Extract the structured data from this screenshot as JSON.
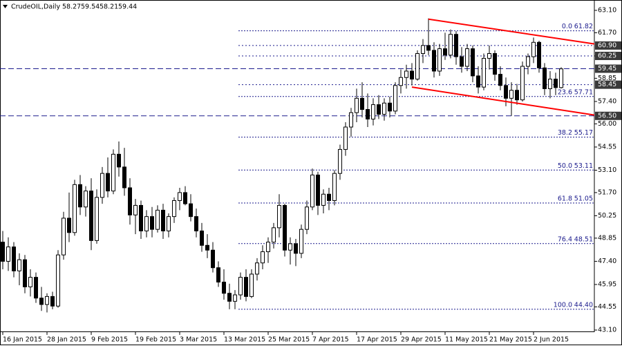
{
  "chart_data": {
    "type": "candlestick",
    "title": "CrudeOIL,Daily",
    "categories": [
      "16 Jan 2015",
      null,
      null,
      null,
      null,
      null,
      null,
      null,
      "28 Jan 2015",
      null,
      null,
      null,
      null,
      null,
      null,
      null,
      "9 Feb 2015",
      null,
      null,
      null,
      null,
      null,
      null,
      null,
      "19 Feb 2015",
      null,
      null,
      null,
      null,
      null,
      null,
      null,
      "3 Mar 2015",
      null,
      null,
      null,
      null,
      null,
      null,
      null,
      "13 Mar 2015",
      null,
      null,
      null,
      null,
      null,
      null,
      null,
      "25 Mar 2015",
      null,
      null,
      null,
      null,
      null,
      null,
      null,
      "7 Apr 2015",
      null,
      null,
      null,
      null,
      null,
      null,
      null,
      "17 Apr 2015",
      null,
      null,
      null,
      null,
      null,
      null,
      null,
      "29 Apr 2015",
      null,
      null,
      null,
      null,
      null,
      null,
      null,
      "11 May 2015",
      null,
      null,
      null,
      null,
      null,
      null,
      null,
      "21 May 2015",
      null,
      null,
      null,
      null,
      null,
      null,
      null,
      "2 Jun 2015",
      null,
      null,
      null,
      null,
      null
    ],
    "open": [
      48.6,
      47.4,
      48.3,
      46.8,
      47.5,
      45.8,
      46.4,
      45.1,
      44.7,
      45.2,
      44.6,
      47.8,
      50.1,
      49.2,
      52.2,
      50.8,
      51.8,
      48.7,
      51.4,
      52.9,
      51.8,
      54.1,
      53.3,
      52.0,
      50.3,
      50.9,
      49.3,
      50.2,
      49.4,
      50.6,
      49.3,
      50.2,
      51.2,
      51.7,
      51.0,
      50.2,
      49.3,
      48.4,
      48.1,
      47.0,
      46.1,
      45.4,
      44.9,
      45.3,
      46.4,
      45.2,
      46.6,
      47.3,
      48.0,
      48.6,
      49.5,
      50.9,
      48.1,
      48.5,
      47.9,
      49.4,
      50.8,
      52.8,
      50.9,
      51.6,
      51.2,
      52.9,
      54.4,
      55.8,
      56.7,
      57.6,
      56.9,
      56.3,
      57.2,
      56.6,
      57.3,
      56.8,
      58.4,
      58.9,
      59.3,
      58.8,
      60.4,
      60.9,
      60.6,
      59.3,
      60.7,
      60.3,
      61.6,
      60.2,
      59.6,
      60.7,
      59.0,
      58.3,
      60.1,
      60.4,
      59.1,
      58.4,
      57.6,
      58.1,
      57.5,
      59.6,
      60.2,
      61.1,
      59.5,
      58.2,
      58.8,
      58.27
    ],
    "high": [
      49.3,
      48.9,
      48.6,
      47.9,
      47.8,
      46.9,
      46.7,
      45.8,
      45.4,
      45.5,
      48.1,
      50.5,
      51.7,
      52.5,
      52.8,
      52.1,
      52.6,
      51.9,
      53.3,
      53.9,
      54.4,
      54.9,
      54.5,
      52.6,
      51.3,
      51.2,
      50.6,
      50.8,
      50.9,
      51.0,
      50.4,
      51.4,
      52.0,
      52.1,
      51.6,
      50.7,
      49.8,
      49.1,
      48.6,
      47.4,
      46.9,
      46.0,
      45.6,
      46.7,
      46.9,
      46.9,
      47.6,
      48.4,
      48.9,
      49.8,
      51.6,
      51.0,
      48.9,
      48.8,
      49.7,
      51.2,
      53.2,
      53.0,
      51.9,
      52.0,
      53.1,
      54.7,
      56.1,
      57.0,
      58.2,
      58.6,
      57.9,
      57.6,
      57.8,
      57.6,
      57.7,
      58.6,
      59.4,
      59.7,
      59.8,
      60.6,
      61.3,
      62.6,
      61.1,
      61.0,
      61.7,
      61.9,
      61.8,
      60.8,
      61.0,
      60.9,
      59.6,
      60.4,
      60.9,
      60.6,
      59.6,
      58.9,
      58.6,
      58.5,
      59.9,
      60.4,
      61.4,
      61.2,
      59.8,
      59.3,
      59.2,
      59.54
    ],
    "low": [
      46.9,
      46.8,
      46.4,
      45.9,
      45.4,
      45.2,
      44.8,
      44.3,
      44.2,
      44.4,
      44.5,
      47.5,
      48.6,
      49.0,
      50.3,
      50.2,
      48.1,
      48.5,
      51.0,
      51.4,
      51.6,
      52.7,
      51.5,
      49.7,
      49.1,
      48.8,
      48.9,
      48.9,
      49.2,
      48.8,
      48.9,
      49.8,
      50.6,
      50.9,
      49.9,
      48.9,
      48.0,
      47.6,
      46.7,
      45.8,
      45.0,
      44.4,
      44.4,
      45.0,
      44.9,
      45.1,
      46.2,
      46.9,
      47.3,
      48.2,
      48.9,
      47.7,
      47.2,
      47.1,
      47.6,
      49.1,
      50.6,
      50.3,
      50.4,
      50.6,
      50.9,
      52.5,
      54.0,
      55.2,
      56.1,
      56.4,
      55.8,
      55.9,
      56.3,
      56.2,
      56.4,
      56.6,
      57.9,
      58.2,
      58.4,
      58.7,
      59.8,
      60.3,
      58.9,
      59.0,
      60.0,
      60.1,
      59.7,
      59.2,
      59.3,
      58.6,
      57.9,
      58.1,
      59.4,
      58.7,
      58.1,
      57.1,
      56.5,
      57.2,
      57.4,
      59.1,
      59.8,
      59.2,
      57.8,
      57.6,
      57.8,
      58.21
    ],
    "close": [
      47.4,
      48.3,
      46.8,
      47.5,
      45.8,
      46.4,
      45.1,
      44.7,
      45.2,
      44.6,
      47.8,
      50.1,
      49.2,
      52.2,
      50.8,
      51.8,
      48.7,
      51.4,
      52.9,
      51.8,
      54.1,
      53.3,
      52.0,
      50.3,
      50.9,
      49.3,
      50.2,
      49.4,
      50.6,
      49.3,
      50.2,
      51.2,
      51.7,
      51.0,
      50.2,
      49.3,
      48.4,
      48.1,
      47.0,
      46.1,
      45.4,
      44.9,
      45.3,
      46.4,
      45.2,
      46.6,
      47.3,
      48.0,
      48.6,
      49.5,
      50.9,
      48.1,
      48.5,
      47.9,
      49.4,
      50.8,
      52.8,
      50.9,
      51.6,
      51.2,
      52.9,
      54.4,
      55.8,
      56.7,
      57.6,
      56.9,
      56.3,
      57.2,
      56.6,
      57.3,
      56.8,
      58.4,
      58.9,
      59.3,
      58.8,
      60.4,
      60.9,
      60.6,
      59.3,
      60.7,
      60.3,
      61.6,
      60.2,
      59.6,
      60.7,
      59.0,
      58.3,
      60.1,
      60.4,
      59.1,
      58.4,
      57.6,
      58.1,
      57.5,
      59.6,
      60.2,
      61.1,
      59.5,
      58.2,
      58.8,
      58.27,
      59.44
    ],
    "ylim": [
      43.1,
      63.1
    ],
    "yticks": [
      {
        "value": 63.1,
        "label": "63.10"
      },
      {
        "value": 61.7,
        "label": "61.70"
      },
      {
        "value": 60.25,
        "label": "60.25"
      },
      {
        "value": 58.85,
        "label": "58.85"
      },
      {
        "value": 57.4,
        "label": "57.40"
      },
      {
        "value": 56.0,
        "label": "56.00"
      },
      {
        "value": 54.55,
        "label": "54.55"
      },
      {
        "value": 53.1,
        "label": "53.10"
      },
      {
        "value": 51.7,
        "label": "51.70"
      },
      {
        "value": 50.25,
        "label": "50.25"
      },
      {
        "value": 48.85,
        "label": "48.85"
      },
      {
        "value": 47.4,
        "label": "47.40"
      },
      {
        "value": 45.95,
        "label": "45.95"
      },
      {
        "value": 44.55,
        "label": "44.55"
      },
      {
        "value": 43.1,
        "label": "43.10"
      }
    ],
    "levels": [
      {
        "value": 60.9,
        "label": "60.90",
        "style": "short-dash"
      },
      {
        "value": 60.25,
        "label": "60.25",
        "style": "short-dash"
      },
      {
        "value": 59.45,
        "label": "59.45",
        "style": "long-dash"
      },
      {
        "value": 58.45,
        "label": "58.45",
        "style": "short-dash"
      },
      {
        "value": 56.5,
        "label": "56.50",
        "style": "long-dash"
      }
    ],
    "fib_levels": [
      {
        "ratio": "0.0",
        "value": 61.82,
        "label": "61.82"
      },
      {
        "ratio": "23.6",
        "value": 57.71,
        "label": "57.71"
      },
      {
        "ratio": "38.2",
        "value": 55.17,
        "label": "55.17"
      },
      {
        "ratio": "50.0",
        "value": 53.11,
        "label": "53.11"
      },
      {
        "ratio": "61.8",
        "value": 51.05,
        "label": "51.05"
      },
      {
        "ratio": "76.4",
        "value": 48.51,
        "label": "48.51"
      },
      {
        "ratio": "100.0",
        "value": 44.4,
        "label": "44.40"
      }
    ],
    "trend_lines": [
      {
        "color": "#ff0000",
        "x": [
          77,
          107
        ],
        "y": [
          62.55,
          61.0
        ]
      },
      {
        "color": "#ff0000",
        "x": [
          74,
          107
        ],
        "y": [
          58.3,
          56.55
        ]
      }
    ],
    "up_color": "#ffffff",
    "down_color": "#000000",
    "level_color": "#1a1a8c"
  }
}
